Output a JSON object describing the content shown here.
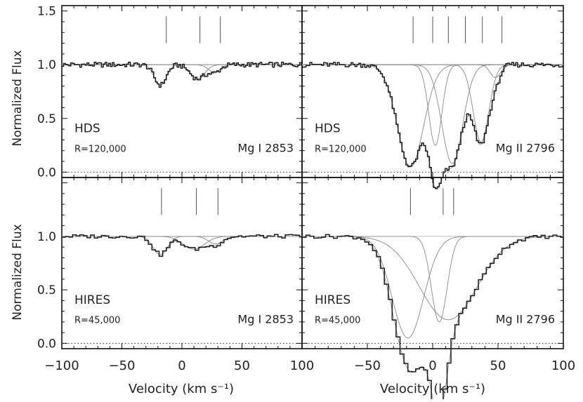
{
  "chart_data": {
    "type": "line",
    "xlabel": "Velocity (km s⁻¹)",
    "ylabel": "Normalized Flux",
    "xlim": [
      -100,
      100
    ],
    "ylim": [
      -0.05,
      1.55
    ],
    "x_ticks": [
      -100,
      -50,
      0,
      50,
      100
    ],
    "y_ticks": [
      0.0,
      0.5,
      1.0,
      1.5
    ],
    "x_tick_labels": [
      "−100",
      "−50",
      "0",
      "50",
      "100"
    ],
    "y_tick_labels": [
      "0.0",
      "0.5",
      "1.0",
      "1.5"
    ],
    "grid": false,
    "panels": [
      {
        "instrument": "HDS",
        "resolution": "R=120,000",
        "line": "Mg I 2853",
        "component_markers": [
          -13,
          15,
          32
        ],
        "components": [
          {
            "v": -18,
            "depth": 0.19,
            "sigma": 5
          },
          {
            "v": 13,
            "depth": 0.13,
            "sigma": 6
          },
          {
            "v": 27,
            "depth": 0.07,
            "sigma": 5
          }
        ]
      },
      {
        "instrument": "HDS",
        "resolution": "R=120,000",
        "line": "Mg II 2796",
        "component_markers": [
          -15,
          0,
          12,
          25,
          38,
          53
        ],
        "components": [
          {
            "v": -17,
            "depth": 0.95,
            "sigma": 10
          },
          {
            "v": 2,
            "depth": 0.75,
            "sigma": 5
          },
          {
            "v": 15,
            "depth": 0.92,
            "sigma": 8
          },
          {
            "v": 37,
            "depth": 0.72,
            "sigma": 6
          },
          {
            "v": 48,
            "depth": 0.12,
            "sigma": 4
          }
        ]
      },
      {
        "instrument": "HIRES",
        "resolution": "R=45,000",
        "line": "Mg I 2853",
        "component_markers": [
          -17,
          12,
          30
        ],
        "components": [
          {
            "v": -18,
            "depth": 0.17,
            "sigma": 6
          },
          {
            "v": 10,
            "depth": 0.12,
            "sigma": 9
          },
          {
            "v": 28,
            "depth": 0.07,
            "sigma": 6
          }
        ]
      },
      {
        "instrument": "HIRES",
        "resolution": "R=45,000",
        "line": "Mg II 2796",
        "component_markers": [
          -17,
          8,
          16
        ],
        "components": [
          {
            "v": -19,
            "depth": 0.95,
            "sigma": 12
          },
          {
            "v": 5,
            "depth": 0.8,
            "sigma": 6
          },
          {
            "v": 12,
            "depth": 0.78,
            "sigma": 22
          }
        ]
      }
    ]
  }
}
